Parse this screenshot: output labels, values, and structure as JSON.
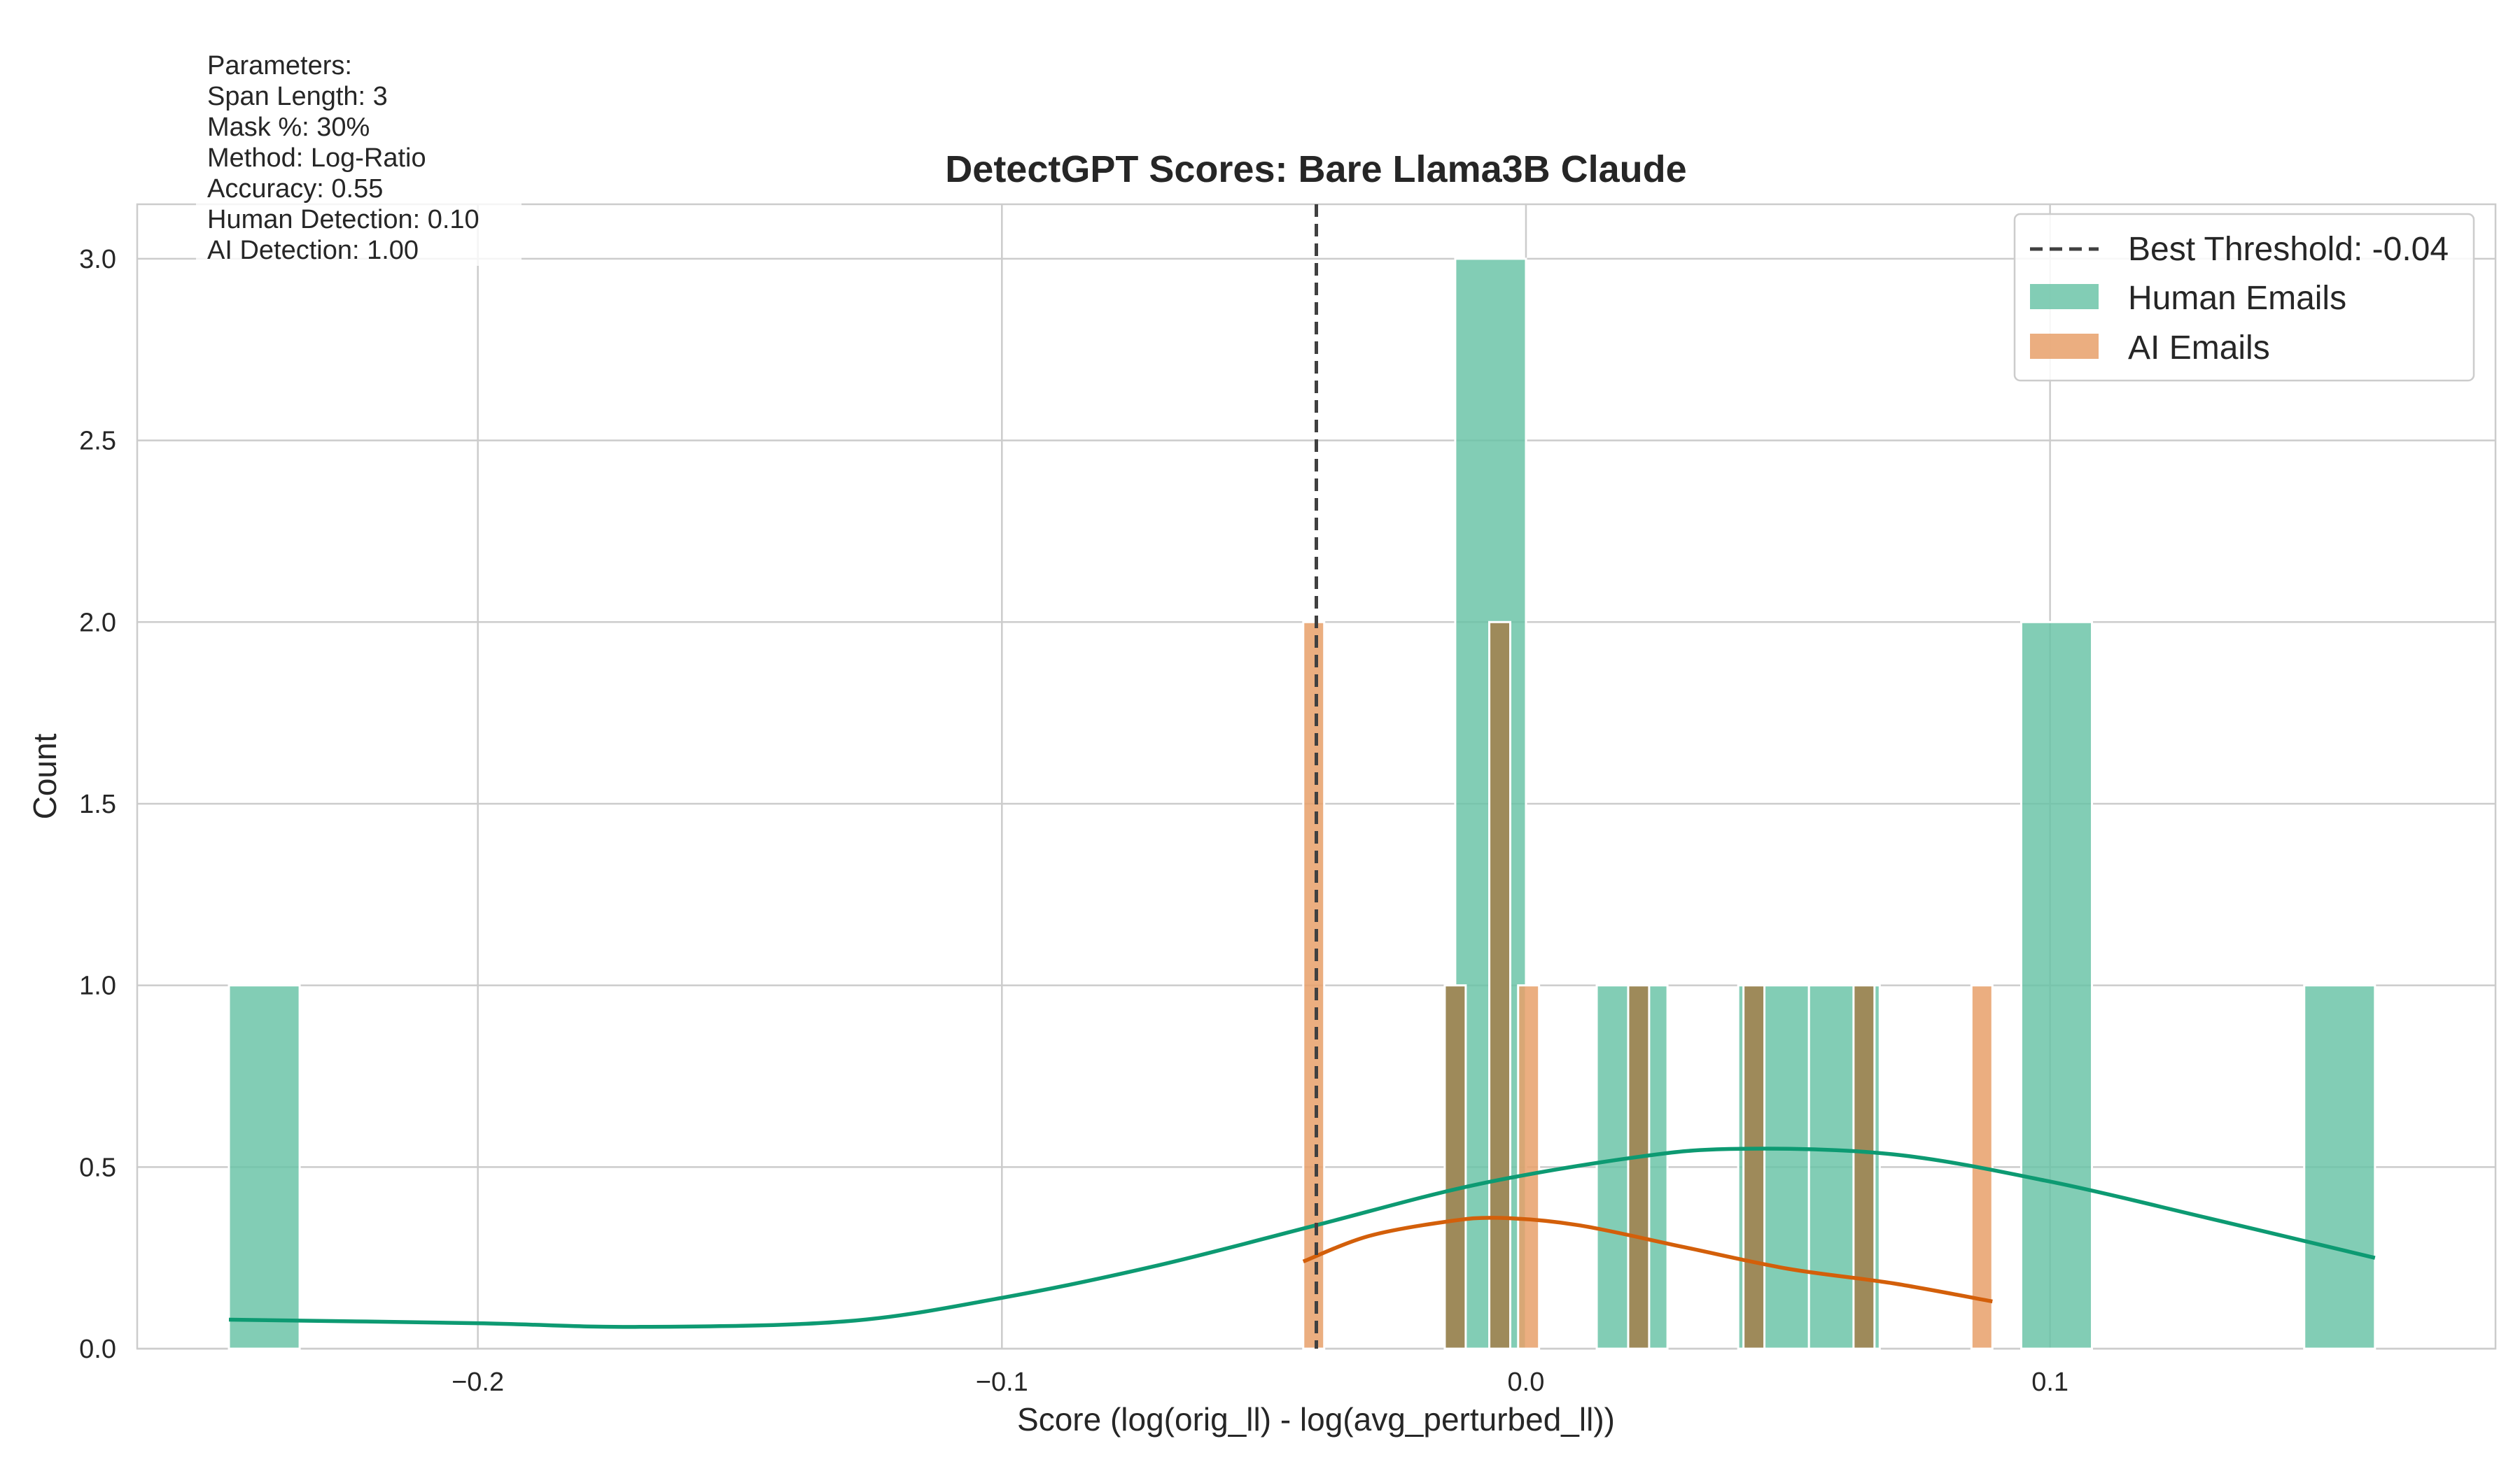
{
  "chart_data": {
    "type": "histogram",
    "title": "DetectGPT Scores: Bare Llama3B Claude",
    "xlabel": "Score (log(orig_ll) - log(avg_perturbed_ll))",
    "ylabel": "Count",
    "xlim": [
      -0.265,
      0.185
    ],
    "ylim": [
      0,
      3.15
    ],
    "xticks": [
      -0.2,
      -0.1,
      0.0,
      0.1
    ],
    "xtick_labels": [
      "−0.2",
      "−0.1",
      "0.0",
      "0.1"
    ],
    "yticks": [
      0,
      0.5,
      1.0,
      1.5,
      2.0,
      2.5,
      3.0
    ],
    "ytick_labels": [
      "0.0",
      "0.5",
      "1.0",
      "1.5",
      "2.0",
      "2.5",
      "3.0"
    ],
    "grid": true,
    "legend_position": "top-right",
    "threshold": {
      "value": -0.04,
      "label": "Best Threshold: -0.04"
    },
    "series": [
      {
        "name": "Human Emails",
        "color": "#66c2a5",
        "kde_color": "#0d9a72",
        "bins": [
          {
            "x0": -0.2475,
            "x1": -0.234,
            "count": 1
          },
          {
            "x0": -0.0135,
            "x1": 0.0,
            "count": 3
          },
          {
            "x0": 0.0135,
            "x1": 0.027,
            "count": 1
          },
          {
            "x0": 0.0405,
            "x1": 0.054,
            "count": 1
          },
          {
            "x0": 0.054,
            "x1": 0.0675,
            "count": 1
          },
          {
            "x0": 0.0945,
            "x1": 0.108,
            "count": 2
          },
          {
            "x0": 0.1485,
            "x1": 0.162,
            "count": 1
          }
        ],
        "kde": {
          "x": [
            -0.2475,
            -0.2,
            -0.17,
            -0.13,
            -0.1,
            -0.07,
            -0.04,
            -0.01,
            0.02,
            0.04,
            0.07,
            0.1,
            0.13,
            0.162
          ],
          "y": [
            0.08,
            0.07,
            0.06,
            0.075,
            0.14,
            0.23,
            0.34,
            0.45,
            0.525,
            0.55,
            0.535,
            0.46,
            0.36,
            0.25
          ]
        }
      },
      {
        "name": "AI Emails",
        "color": "#e8a06a",
        "kde_color": "#d35f0a",
        "bins": [
          {
            "x0": -0.0425,
            "x1": -0.0385,
            "count": 2
          },
          {
            "x0": -0.0155,
            "x1": -0.0115,
            "count": 1
          },
          {
            "x0": -0.007,
            "x1": -0.003,
            "count": 2
          },
          {
            "x0": -0.0015,
            "x1": 0.0025,
            "count": 1
          },
          {
            "x0": 0.0195,
            "x1": 0.0235,
            "count": 1
          },
          {
            "x0": 0.0415,
            "x1": 0.0455,
            "count": 1
          },
          {
            "x0": 0.0625,
            "x1": 0.0665,
            "count": 1
          },
          {
            "x0": 0.085,
            "x1": 0.089,
            "count": 1
          }
        ],
        "kde": {
          "x": [
            -0.0425,
            -0.03,
            -0.015,
            -0.005,
            0.01,
            0.03,
            0.05,
            0.07,
            0.089
          ],
          "y": [
            0.24,
            0.31,
            0.35,
            0.36,
            0.34,
            0.28,
            0.22,
            0.18,
            0.13
          ]
        }
      }
    ],
    "overlap_color": "#9e8a5a",
    "parameters_box": {
      "lines": [
        "Parameters:",
        "Span Length: 3",
        "Mask %: 30%",
        "Method: Log-Ratio",
        "Accuracy: 0.55",
        "Human Detection: 0.10",
        "AI Detection: 1.00"
      ]
    }
  }
}
